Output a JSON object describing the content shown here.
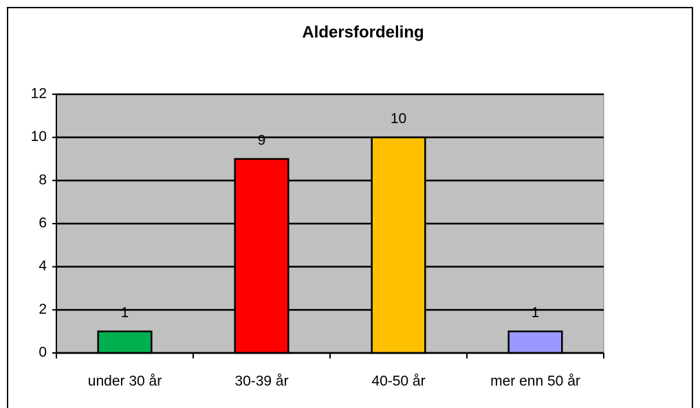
{
  "chart_data": {
    "type": "bar",
    "title": "Aldersfordeling",
    "categories": [
      "under 30 år",
      "30-39 år",
      "40-50 år",
      "mer enn 50 år"
    ],
    "values": [
      1,
      9,
      10,
      1
    ],
    "colors": [
      "#00b050",
      "#ff0000",
      "#ffc000",
      "#9999ff"
    ],
    "ylim": [
      0,
      12
    ],
    "yticks": [
      0,
      2,
      4,
      6,
      8,
      10,
      12
    ],
    "grid": true
  }
}
